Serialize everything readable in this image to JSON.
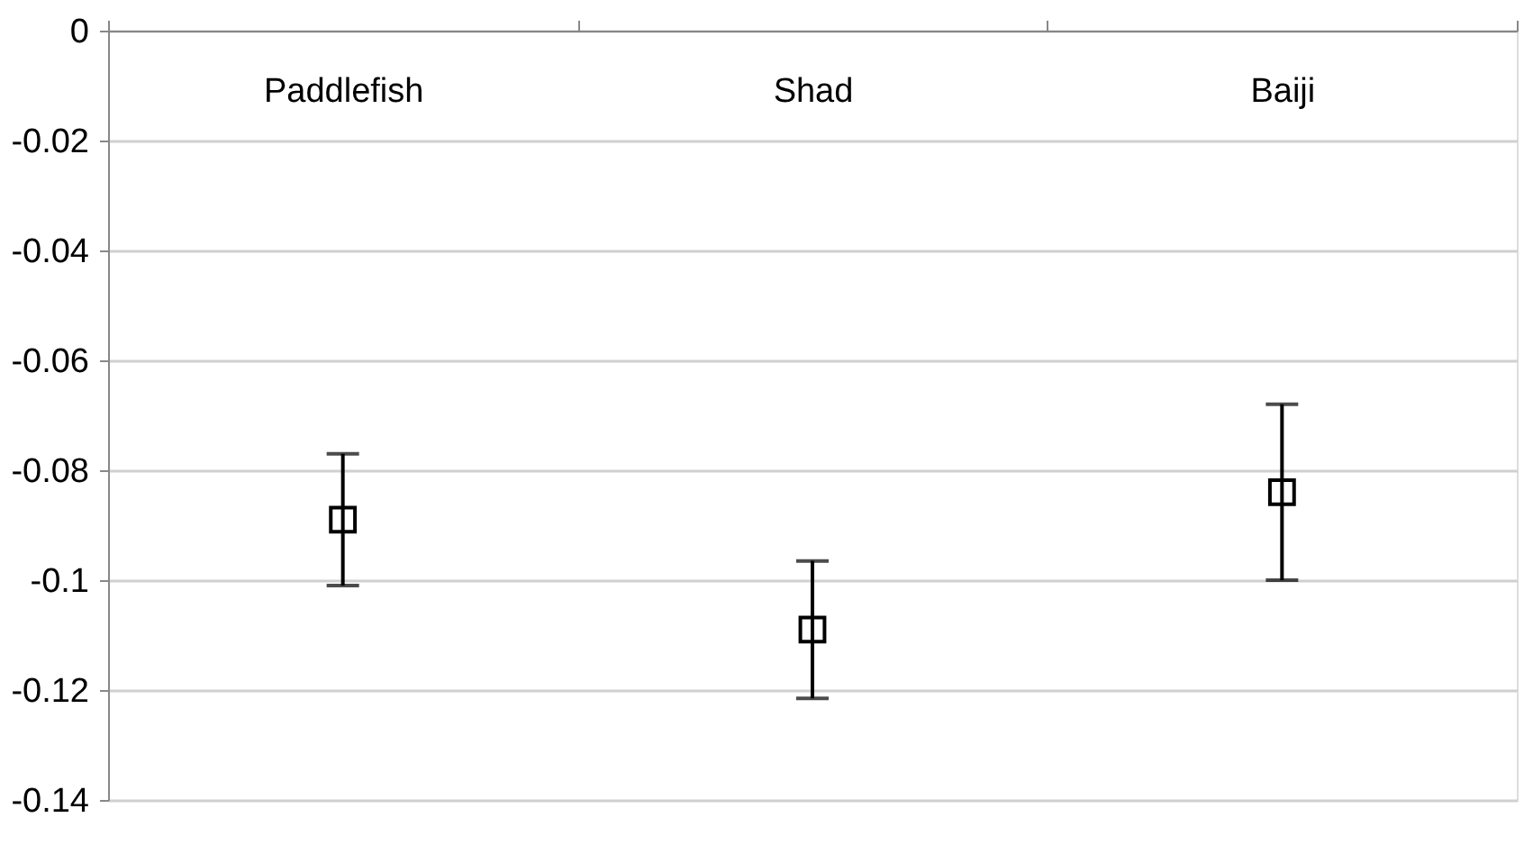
{
  "chart_data": {
    "type": "scatter",
    "categories": [
      "Paddlefish",
      "Shad",
      "Baiji"
    ],
    "series": [
      {
        "color": "#000000",
        "values": [
          -0.089,
          -0.109,
          -0.084
        ],
        "errors": [
          0.012,
          0.0125,
          0.016
        ]
      }
    ],
    "ylim": [
      -0.14,
      0
    ],
    "yticks": [
      0,
      -0.02,
      -0.04,
      -0.06,
      -0.08,
      -0.1,
      -0.12,
      -0.14
    ],
    "grid": "y",
    "marker": "square"
  }
}
